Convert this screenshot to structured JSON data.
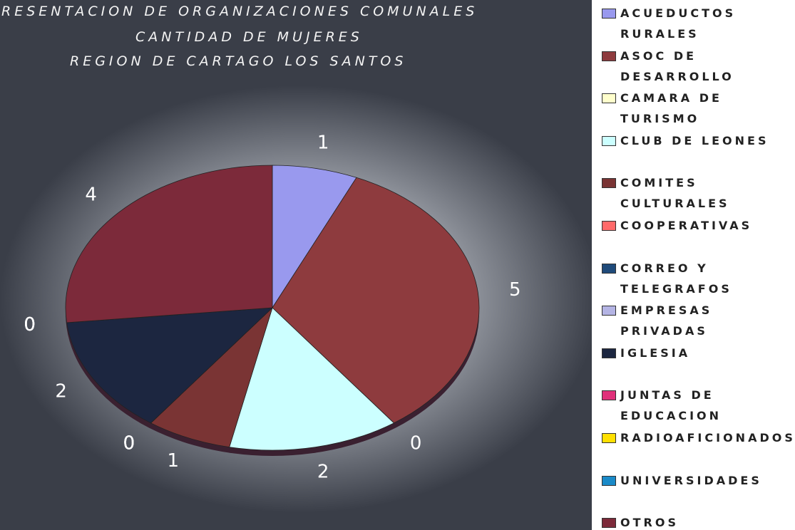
{
  "chart_data": {
    "type": "pie",
    "title": [
      "RESENTACION DE ORGANIZACIONES COMUNALES",
      "CANTIDAD DE MUJERES",
      "REGION DE CARTAGO LOS SANTOS"
    ],
    "categories": [
      "ACUEDUCTOS RURALES",
      "ASOC DE DESARROLLO",
      "CAMARA DE TURISMO",
      "CLUB DE LEONES",
      "COMITES CULTURALES",
      "COOPERATIVAS",
      "CORREO Y TELEGRAFOS",
      "EMPRESAS PRIVADAS",
      "IGLESIA",
      "JUNTAS DE EDUCACION",
      "RADIOAFICIONADOS",
      "UNIVERSIDADES",
      "OTROS"
    ],
    "values": [
      1,
      5,
      0,
      2,
      1,
      0,
      0,
      0,
      2,
      0,
      0,
      0,
      4
    ],
    "colors": [
      "#9999ee",
      "#8e3b3e",
      "#ffffcc",
      "#ccffff",
      "#7a3434",
      "#ff6a6a",
      "#1f4a7a",
      "#b4b4e4",
      "#1c2640",
      "#e0307a",
      "#ffe000",
      "#1a8ac8",
      "#7c2a3a"
    ]
  }
}
